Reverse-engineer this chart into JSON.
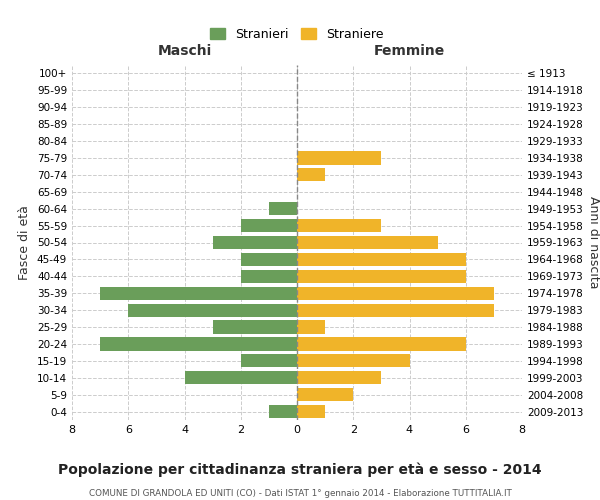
{
  "age_groups": [
    "0-4",
    "5-9",
    "10-14",
    "15-19",
    "20-24",
    "25-29",
    "30-34",
    "35-39",
    "40-44",
    "45-49",
    "50-54",
    "55-59",
    "60-64",
    "65-69",
    "70-74",
    "75-79",
    "80-84",
    "85-89",
    "90-94",
    "95-99",
    "100+"
  ],
  "birth_years": [
    "2009-2013",
    "2004-2008",
    "1999-2003",
    "1994-1998",
    "1989-1993",
    "1984-1988",
    "1979-1983",
    "1974-1978",
    "1969-1973",
    "1964-1968",
    "1959-1963",
    "1954-1958",
    "1949-1953",
    "1944-1948",
    "1939-1943",
    "1934-1938",
    "1929-1933",
    "1924-1928",
    "1919-1923",
    "1914-1918",
    "≤ 1913"
  ],
  "males": [
    1,
    0,
    4,
    2,
    7,
    3,
    6,
    7,
    2,
    2,
    3,
    2,
    1,
    0,
    0,
    0,
    0,
    0,
    0,
    0,
    0
  ],
  "females": [
    1,
    2,
    3,
    4,
    6,
    1,
    7,
    7,
    6,
    6,
    5,
    3,
    0,
    0,
    1,
    3,
    0,
    0,
    0,
    0,
    0
  ],
  "male_color": "#6a9e5a",
  "female_color": "#f0b429",
  "title": "Popolazione per cittadinanza straniera per età e sesso - 2014",
  "subtitle": "COMUNE DI GRANDOLA ED UNITI (CO) - Dati ISTAT 1° gennaio 2014 - Elaborazione TUTTITALIA.IT",
  "xlabel_left": "Maschi",
  "xlabel_right": "Femmine",
  "ylabel_left": "Fasce di età",
  "ylabel_right": "Anni di nascita",
  "legend_male": "Stranieri",
  "legend_female": "Straniere",
  "xlim": 8,
  "background_color": "#ffffff",
  "grid_color": "#cccccc"
}
